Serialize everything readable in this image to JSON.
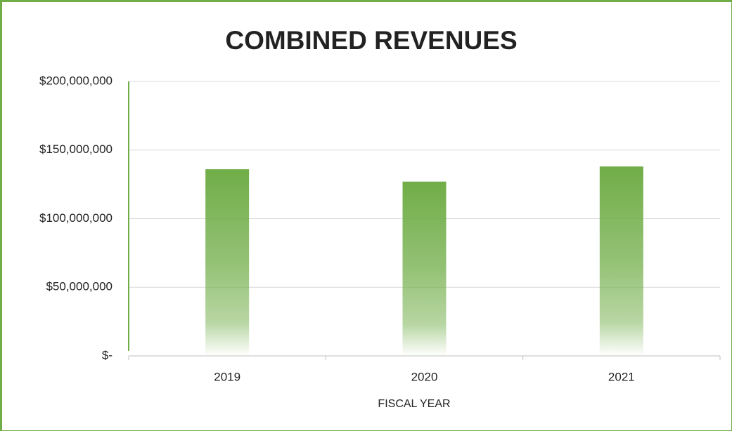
{
  "chart_data": {
    "type": "bar",
    "title": "COMBINED REVENUES",
    "x_label": "FISCAL YEAR",
    "categories": [
      "2019",
      "2020",
      "2021"
    ],
    "values": [
      136000000,
      127000000,
      138000000
    ],
    "color": "#70ad47",
    "ylim": [
      0,
      200000000
    ],
    "yticks": [
      {
        "value": 0,
        "label": "$-"
      },
      {
        "value": 50000000,
        "label": "$50,000,000"
      },
      {
        "value": 100000000,
        "label": "$100,000,000"
      },
      {
        "value": 150000000,
        "label": "$150,000,000"
      },
      {
        "value": 200000000,
        "label": "$200,000,000"
      }
    ],
    "grid": true
  }
}
